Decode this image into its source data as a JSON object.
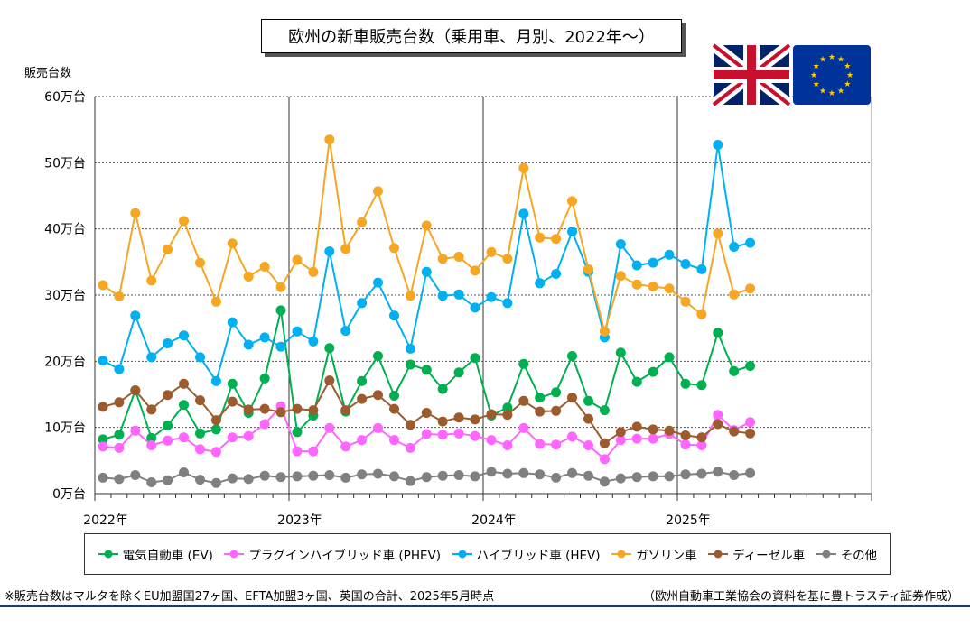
{
  "chart_data": {
    "type": "line",
    "title": "欧州の新車販売台数（乗用車、月別、2022年～）",
    "ylabel": "販売台数",
    "y_unit_suffix": "万台",
    "ylim": [
      0,
      60
    ],
    "yticks": [
      0,
      10,
      20,
      30,
      40,
      50,
      60
    ],
    "ytick_labels": [
      "0万台",
      "10万台",
      "20万台",
      "30万台",
      "40万台",
      "50万台",
      "60万台"
    ],
    "x_year_labels": [
      "2022年",
      "2023年",
      "2024年",
      "2025年"
    ],
    "x_start": "2022-01",
    "months_shown": 48,
    "grid": true,
    "legend_position": "bottom",
    "series": [
      {
        "name": "電気自動車 (EV)",
        "color": "#00b050",
        "values": [
          8.2,
          8.9,
          15.6,
          8.4,
          10.3,
          13.4,
          9.1,
          9.7,
          16.6,
          12.2,
          17.4,
          27.7,
          9.3,
          11.8,
          22.0,
          12.4,
          17.0,
          20.8,
          14.8,
          19.5,
          18.7,
          15.8,
          18.3,
          20.5,
          11.8,
          13.0,
          19.6,
          14.5,
          15.3,
          20.8,
          14.0,
          12.6,
          21.3,
          16.9,
          18.4,
          20.6,
          16.6,
          16.4,
          24.3,
          18.5,
          19.3
        ]
      },
      {
        "name": "プラグインハイブリッド車 (PHEV)",
        "color": "#ff66ff",
        "values": [
          7.1,
          6.9,
          9.5,
          7.3,
          8.0,
          8.5,
          6.7,
          6.3,
          8.5,
          8.7,
          10.5,
          13.2,
          6.4,
          6.4,
          9.9,
          7.1,
          8.1,
          9.9,
          8.1,
          6.9,
          9.0,
          8.9,
          9.1,
          8.7,
          8.1,
          7.3,
          9.9,
          7.5,
          7.4,
          8.6,
          7.3,
          5.2,
          8.1,
          8.3,
          8.3,
          9.0,
          7.4,
          7.3,
          11.9,
          9.6,
          10.8
        ]
      },
      {
        "name": "ハイブリッド車 (HEV)",
        "color": "#00b0f0",
        "values": [
          20.1,
          18.8,
          26.9,
          20.6,
          22.7,
          23.9,
          20.6,
          17.0,
          25.9,
          22.5,
          23.6,
          22.2,
          24.5,
          23.0,
          36.6,
          24.6,
          28.8,
          31.9,
          26.9,
          21.9,
          33.5,
          29.9,
          30.1,
          28.1,
          29.7,
          28.8,
          42.3,
          31.8,
          33.2,
          39.6,
          33.5,
          23.6,
          37.7,
          34.5,
          34.9,
          36.1,
          34.7,
          33.9,
          52.7,
          37.3,
          37.9
        ]
      },
      {
        "name": "ガソリン車",
        "color": "#f5a623",
        "values": [
          31.5,
          29.8,
          42.4,
          32.2,
          36.9,
          41.2,
          34.9,
          29.0,
          37.8,
          32.8,
          34.3,
          31.2,
          35.3,
          33.5,
          53.5,
          37.0,
          41.0,
          45.7,
          37.1,
          29.9,
          40.5,
          35.5,
          35.8,
          33.7,
          36.5,
          35.5,
          49.2,
          38.7,
          38.5,
          44.2,
          33.9,
          24.5,
          32.9,
          31.6,
          31.3,
          31.0,
          29.0,
          27.1,
          39.3,
          30.1,
          31.0
        ]
      },
      {
        "name": "ディーゼル車",
        "color": "#9c5b2d",
        "values": [
          13.1,
          13.8,
          15.6,
          12.7,
          14.9,
          16.6,
          14.1,
          11.1,
          13.9,
          12.7,
          12.8,
          12.3,
          12.8,
          12.6,
          17.1,
          12.6,
          14.3,
          14.9,
          12.8,
          10.4,
          12.2,
          10.9,
          11.5,
          11.2,
          12.0,
          11.9,
          14.0,
          12.4,
          12.5,
          14.5,
          11.3,
          7.6,
          9.3,
          10.1,
          9.7,
          9.5,
          8.8,
          8.5,
          10.5,
          9.4,
          9.1
        ]
      },
      {
        "name": "その他",
        "color": "#808080",
        "values": [
          2.4,
          2.2,
          2.8,
          1.7,
          2.0,
          3.2,
          2.1,
          1.6,
          2.3,
          2.2,
          2.7,
          2.5,
          2.6,
          2.7,
          2.8,
          2.4,
          2.9,
          3.0,
          2.6,
          1.9,
          2.5,
          2.7,
          2.8,
          2.6,
          3.3,
          3.0,
          3.1,
          2.9,
          2.4,
          3.1,
          2.7,
          1.8,
          2.3,
          2.5,
          2.6,
          2.6,
          2.9,
          3.0,
          3.3,
          2.8,
          3.1
        ]
      }
    ]
  },
  "footnote": "※販売台数はマルタを除くEU加盟国27ヶ国、EFTA加盟3ヶ国、英国の合計、2025年5月時点",
  "source": "（欧州自動車工業協会の資料を基に豊トラスティ証券作成）",
  "flags": [
    "uk-flag-icon",
    "eu-flag-icon"
  ]
}
